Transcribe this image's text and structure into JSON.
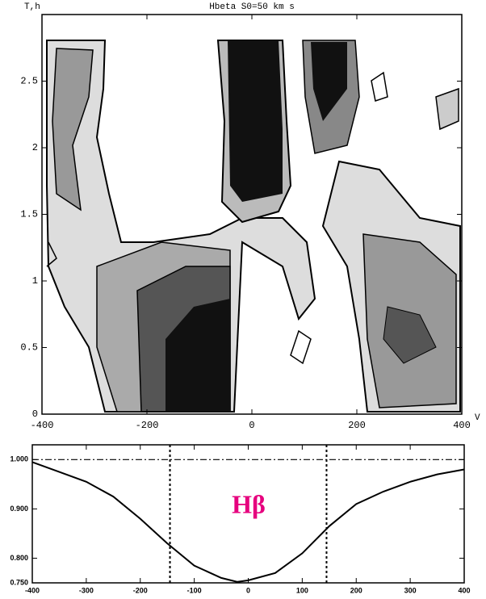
{
  "chart_data": [
    {
      "type": "contour",
      "title": "Hbeta  S0=50 km s",
      "ylabel": "T,h",
      "xlabel": "V",
      "xlim": [
        -400,
        400
      ],
      "xticks": [
        -400,
        -200,
        0,
        200,
        400
      ],
      "ylim": [
        0,
        3.0
      ],
      "yticks": [
        0,
        0.5,
        1,
        1.5,
        2,
        2.5
      ]
    },
    {
      "type": "line",
      "annotation": "Hβ",
      "x": [
        -400,
        -350,
        -300,
        -250,
        -200,
        -150,
        -100,
        -50,
        -20,
        0,
        50,
        100,
        150,
        200,
        250,
        300,
        350,
        400
      ],
      "values": [
        0.995,
        0.975,
        0.955,
        0.925,
        0.88,
        0.83,
        0.785,
        0.76,
        0.752,
        0.755,
        0.77,
        0.81,
        0.865,
        0.91,
        0.935,
        0.955,
        0.97,
        0.98
      ],
      "color": "#000000",
      "xlim": [
        -400,
        400
      ],
      "xticks": [
        -400,
        -300,
        -200,
        -100,
        0,
        100,
        200,
        300,
        400
      ],
      "ylim": [
        0.75,
        1.03
      ],
      "yticks": [
        {
          "value": 0.75,
          "label": "0.750"
        },
        {
          "value": 0.8,
          "label": "0.800"
        },
        {
          "value": 0.9,
          "label": "0.900"
        },
        {
          "value": 1,
          "label": "1.000"
        }
      ],
      "vlines": [
        -145,
        145
      ],
      "hline": 1
    }
  ]
}
